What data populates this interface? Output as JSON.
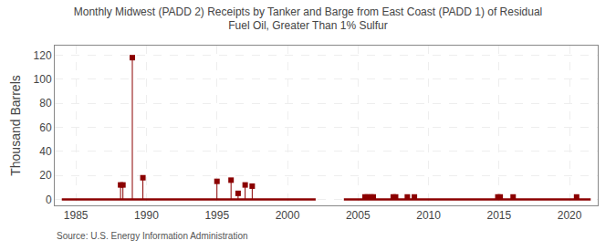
{
  "chart_data": {
    "type": "stem",
    "title": "Monthly Midwest (PADD 2) Receipts by Tanker and Barge from East Coast (PADD 1) of Residual\nFuel Oil, Greater Than 1% Sulfur",
    "ylabel": "Thousand Barrels",
    "annotations": [
      {
        "text": "Source: U.S. Energy Information Administration"
      }
    ],
    "series": [
      {
        "type": "line",
        "color": "#8b0000",
        "x": [
          1984.0,
          2002.0,
          null,
          2004.0,
          2021.5
        ],
        "values": [
          0,
          0,
          null,
          0,
          0
        ]
      },
      {
        "type": "stem",
        "color": "#8b0000",
        "marker": "square",
        "x": [
          1988.1667,
          1988.3333,
          1989.0,
          1989.75,
          1995.0,
          1996.0,
          1996.5,
          1997.0,
          1997.5,
          2005.5,
          2005.6667,
          2005.9167,
          2006.0833,
          2007.5,
          2007.6667,
          2008.5,
          2009.0,
          2014.9167,
          2015.0833,
          2016.0,
          2020.5
        ],
        "values": [
          12,
          12,
          118,
          18,
          15,
          16,
          5,
          12,
          11,
          2,
          2,
          2,
          2,
          2,
          2,
          2,
          2,
          2,
          2,
          2,
          2
        ]
      }
    ],
    "xlim": [
      1983.5,
      2022
    ],
    "ylim": [
      -5,
      128
    ],
    "xticks": [
      1985,
      1990,
      1995,
      2000,
      2005,
      2010,
      2015,
      2020
    ],
    "yticks": [
      0,
      20,
      40,
      60,
      80,
      100,
      120
    ],
    "grid": true
  }
}
